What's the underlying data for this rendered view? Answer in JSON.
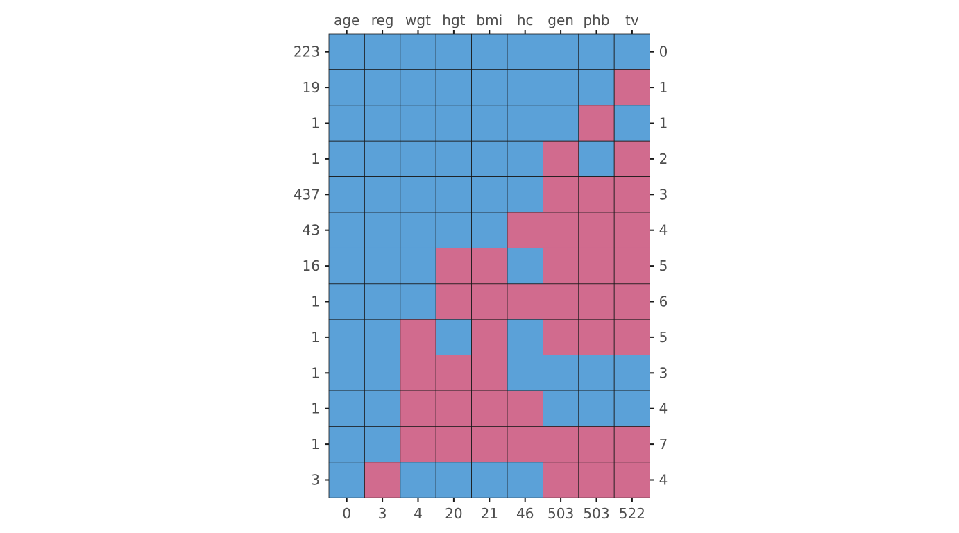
{
  "chart_data": {
    "type": "heatmap",
    "title": "",
    "xlabel": "",
    "ylabel": "",
    "columns": [
      "age",
      "reg",
      "wgt",
      "hgt",
      "bmi",
      "hc",
      "gen",
      "phb",
      "tv"
    ],
    "column_missing_counts": [
      "0",
      "3",
      "4",
      "20",
      "21",
      "46",
      "503",
      "503",
      "522"
    ],
    "row_pattern_counts": [
      "223",
      "19",
      "1",
      "1",
      "437",
      "43",
      "16",
      "1",
      "1",
      "1",
      "1",
      "1",
      "3"
    ],
    "row_missing_counts": [
      "0",
      "1",
      "1",
      "2",
      "3",
      "4",
      "5",
      "6",
      "5",
      "3",
      "4",
      "7",
      "4"
    ],
    "legend": "none",
    "grid": true,
    "value_meaning": {
      "1": "observed",
      "0": "missing"
    },
    "colors": {
      "observed": "#5BA1D8",
      "missing": "#D16B8E",
      "grid_line": "#1a1a1a",
      "text": "#4d4d4d",
      "tick": "#1a1a1a"
    },
    "patterns": [
      [
        1,
        1,
        1,
        1,
        1,
        1,
        1,
        1,
        1
      ],
      [
        1,
        1,
        1,
        1,
        1,
        1,
        1,
        1,
        0
      ],
      [
        1,
        1,
        1,
        1,
        1,
        1,
        1,
        0,
        1
      ],
      [
        1,
        1,
        1,
        1,
        1,
        1,
        0,
        1,
        0
      ],
      [
        1,
        1,
        1,
        1,
        1,
        1,
        0,
        0,
        0
      ],
      [
        1,
        1,
        1,
        1,
        1,
        0,
        0,
        0,
        0
      ],
      [
        1,
        1,
        1,
        0,
        0,
        1,
        0,
        0,
        0
      ],
      [
        1,
        1,
        1,
        0,
        0,
        0,
        0,
        0,
        0
      ],
      [
        1,
        1,
        0,
        1,
        0,
        1,
        0,
        0,
        0
      ],
      [
        1,
        1,
        0,
        0,
        0,
        1,
        1,
        1,
        1
      ],
      [
        1,
        1,
        0,
        0,
        0,
        0,
        1,
        1,
        1
      ],
      [
        1,
        1,
        0,
        0,
        0,
        0,
        0,
        0,
        0
      ],
      [
        1,
        0,
        1,
        1,
        1,
        1,
        0,
        0,
        0
      ]
    ]
  }
}
